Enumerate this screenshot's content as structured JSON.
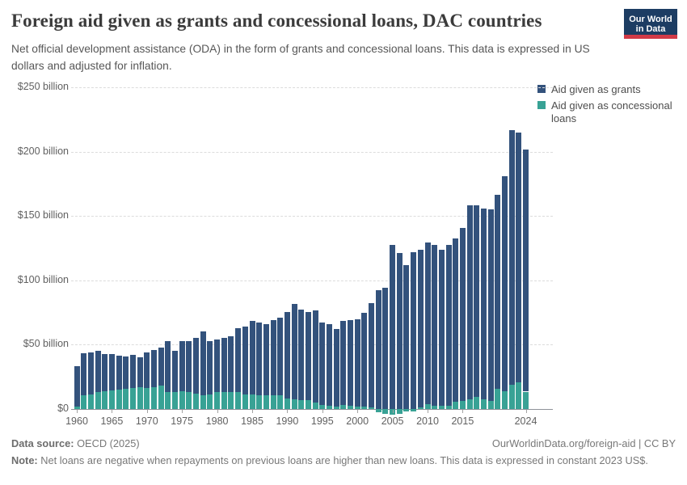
{
  "header": {
    "title": "Foreign aid given as grants and concessional loans, DAC countries",
    "subtitle": "Net official development assistance (ODA) in the form of grants and concessional loans. This data is expressed in US dollars and adjusted for inflation.",
    "logo": {
      "line1": "Our World",
      "line2": "in Data",
      "bg_color": "#1d3d63",
      "stripe_color": "#d23a47"
    }
  },
  "legend": {
    "items": [
      {
        "label": "Aid given as grants",
        "color": "#33527C"
      },
      {
        "label": "Aid given as concessional loans",
        "color": "#38A295"
      }
    ]
  },
  "chart_data": {
    "type": "bar",
    "stacked": true,
    "unit": "US$ billion (constant 2023 US$)",
    "title": "Foreign aid given as grants and concessional loans, DAC countries",
    "xlabel": "Year",
    "ylabel": "US$ billion",
    "ylim": [
      0,
      250
    ],
    "grid": "horizontal-dashed",
    "legend_position": "top-right",
    "x": [
      1960,
      1961,
      1962,
      1963,
      1964,
      1965,
      1966,
      1967,
      1968,
      1969,
      1970,
      1971,
      1972,
      1973,
      1974,
      1975,
      1976,
      1977,
      1978,
      1979,
      1980,
      1981,
      1982,
      1983,
      1984,
      1985,
      1986,
      1987,
      1988,
      1989,
      1990,
      1991,
      1992,
      1993,
      1994,
      1995,
      1996,
      1997,
      1998,
      1999,
      2000,
      2001,
      2002,
      2003,
      2004,
      2005,
      2006,
      2007,
      2008,
      2009,
      2010,
      2011,
      2012,
      2013,
      2014,
      2015,
      2016,
      2017,
      2018,
      2019,
      2020,
      2021,
      2022,
      2023,
      2024
    ],
    "series": [
      {
        "name": "Aid given as grants",
        "color": "#33527C",
        "values": [
          31,
          33,
          33,
          32.5,
          29,
          28,
          26.5,
          25.5,
          25.5,
          23,
          27.5,
          29,
          29.5,
          39.5,
          31.5,
          38.5,
          39.5,
          43,
          50,
          41.5,
          40.5,
          42.5,
          43,
          50,
          52.5,
          57,
          56.5,
          55.5,
          58.5,
          60.5,
          67.5,
          74,
          70,
          68.5,
          71.5,
          64.5,
          63.5,
          60.5,
          65.5,
          66.5,
          68,
          73,
          81,
          92.5,
          94.5,
          127.5,
          121,
          112,
          122,
          122,
          126,
          125,
          121.5,
          125,
          127,
          134.5,
          151,
          149,
          148,
          148.5,
          150.5,
          167,
          197.5,
          194.5,
          188
        ]
      },
      {
        "name": "Aid given as concessional loans",
        "color": "#38A295",
        "values": [
          2,
          10.5,
          11,
          13,
          14,
          14.5,
          15,
          15.5,
          16.5,
          17,
          16.5,
          17,
          18,
          13,
          13.5,
          14,
          13,
          12,
          10.5,
          11,
          13.5,
          13,
          13.5,
          13,
          11.5,
          11.5,
          10.5,
          10.5,
          10.5,
          10.5,
          8,
          7.5,
          7,
          7,
          5,
          3,
          2.5,
          2,
          3,
          2.5,
          2,
          2,
          1.5,
          -2.5,
          -3.5,
          -4.5,
          -4,
          -2,
          -2,
          1.5,
          3.5,
          2.5,
          2.5,
          2.5,
          5.5,
          6.5,
          7.5,
          9.5,
          7.5,
          6.5,
          16,
          14,
          19,
          20.5,
          13.5
        ]
      }
    ],
    "y_ticks": [
      {
        "value": 0,
        "label": "$0"
      },
      {
        "value": 50,
        "label": "$50 billion"
      },
      {
        "value": 100,
        "label": "$100 billion"
      },
      {
        "value": 150,
        "label": "$150 billion"
      },
      {
        "value": 200,
        "label": "$200 billion"
      },
      {
        "value": 250,
        "label": "$250 billion"
      }
    ],
    "x_tick_years": [
      1960,
      1965,
      1970,
      1975,
      1980,
      1985,
      1990,
      1995,
      2000,
      2005,
      2010,
      2015,
      2024
    ]
  },
  "footer": {
    "source_label": "Data source:",
    "source_text": " OECD (2025)",
    "link_text": "OurWorldinData.org/foreign-aid | CC BY",
    "note_label": "Note:",
    "note_text": " Net loans are negative when repayments on previous loans are higher than new loans. This data is expressed in constant 2023 US$."
  }
}
